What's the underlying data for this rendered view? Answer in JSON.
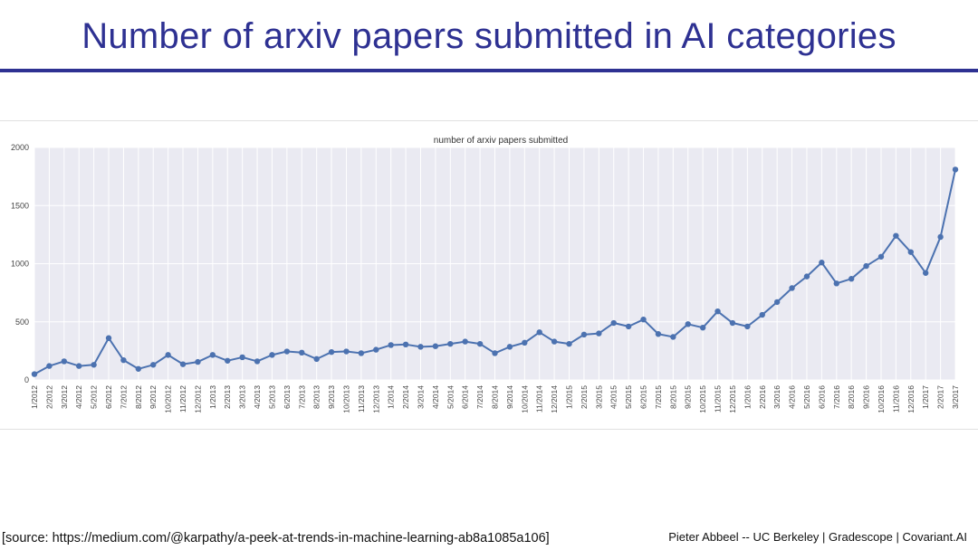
{
  "slide": {
    "title": "Number of arxiv papers submitted in AI categories",
    "source": "[source: https://medium.com/@karpathy/a-peek-at-trends-in-machine-learning-ab8a1085a106]",
    "credit": "Pieter Abbeel -- UC Berkeley | Gradescope | Covariant.AI"
  },
  "colors": {
    "title": "#2e3192",
    "series": "#4c72b0",
    "plot_bg": "#eaeaf2",
    "grid": "#ffffff"
  },
  "chart_data": {
    "type": "line",
    "title": "number of arxiv papers submitted",
    "xlabel": "",
    "ylabel": "",
    "ylim": [
      0,
      2000
    ],
    "yticks": [
      0,
      500,
      1000,
      1500,
      2000
    ],
    "grid": true,
    "categories": [
      "1/2012",
      "2/2012",
      "3/2012",
      "4/2012",
      "5/2012",
      "6/2012",
      "7/2012",
      "8/2012",
      "9/2012",
      "10/2012",
      "11/2012",
      "12/2012",
      "1/2013",
      "2/2013",
      "3/2013",
      "4/2013",
      "5/2013",
      "6/2013",
      "7/2013",
      "8/2013",
      "9/2013",
      "10/2013",
      "11/2013",
      "12/2013",
      "1/2014",
      "2/2014",
      "3/2014",
      "4/2014",
      "5/2014",
      "6/2014",
      "7/2014",
      "8/2014",
      "9/2014",
      "10/2014",
      "11/2014",
      "12/2014",
      "1/2015",
      "2/2015",
      "3/2015",
      "4/2015",
      "5/2015",
      "6/2015",
      "7/2015",
      "8/2015",
      "9/2015",
      "10/2015",
      "11/2015",
      "12/2015",
      "1/2016",
      "2/2016",
      "3/2016",
      "4/2016",
      "5/2016",
      "6/2016",
      "7/2016",
      "8/2016",
      "9/2016",
      "10/2016",
      "11/2016",
      "12/2016",
      "1/2017",
      "2/2017",
      "3/2017"
    ],
    "series": [
      {
        "values": [
          50,
          120,
          160,
          120,
          130,
          360,
          170,
          95,
          130,
          215,
          135,
          155,
          215,
          165,
          195,
          160,
          215,
          245,
          235,
          180,
          240,
          245,
          230,
          260,
          300,
          305,
          285,
          290,
          310,
          330,
          310,
          230,
          285,
          320,
          410,
          330,
          310,
          390,
          400,
          490,
          460,
          520,
          395,
          370,
          480,
          450,
          590,
          490,
          460,
          560,
          670,
          790,
          890,
          1010,
          830,
          870,
          980,
          1060,
          1240,
          1100,
          920,
          1230,
          1810
        ]
      }
    ]
  }
}
